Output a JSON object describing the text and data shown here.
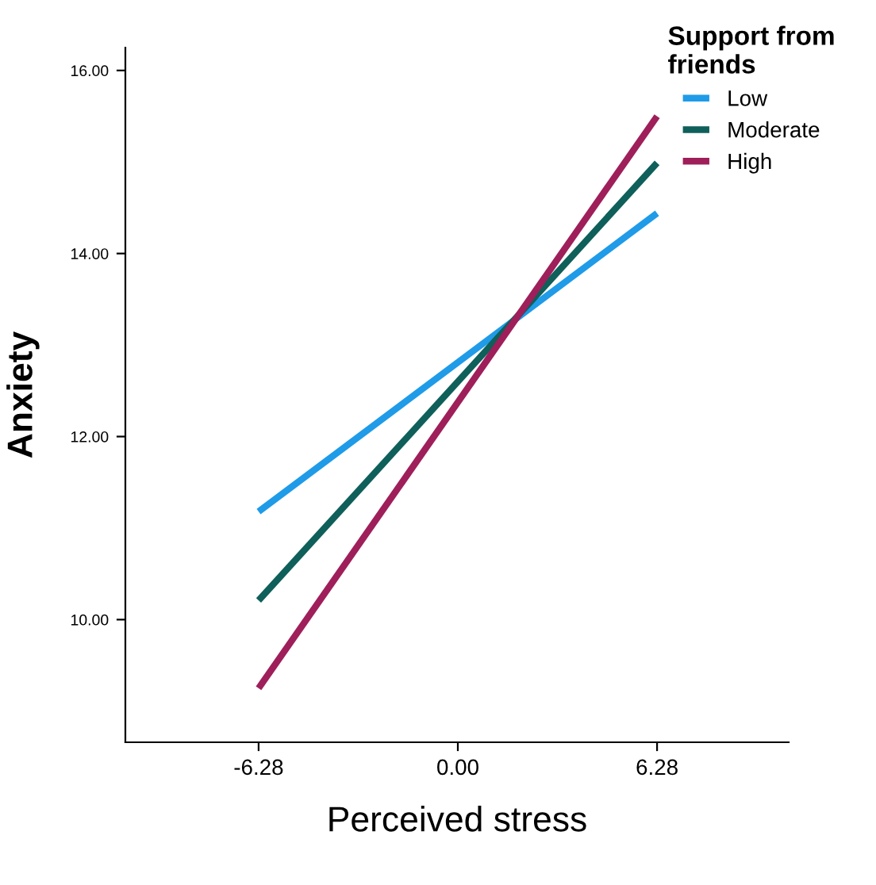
{
  "chart_data": {
    "type": "line",
    "xlabel": "Perceived stress",
    "ylabel": "Anxiety",
    "legend_title": "Support from\nfriends",
    "legend": "top right",
    "grid": false,
    "marker": "none",
    "line_style": "solid",
    "x": [
      -6.28,
      6.28
    ],
    "xlim": [
      -10.48,
      10.43
    ],
    "ylim": [
      8.66,
      16.25
    ],
    "xticks": [
      {
        "value": -6.28,
        "label": "-6.28"
      },
      {
        "value": 0,
        "label": "0.00"
      },
      {
        "value": 6.28,
        "label": "6.28"
      }
    ],
    "yticks": [
      {
        "value": 10,
        "label": "10.00"
      },
      {
        "value": 12,
        "label": "12.00"
      },
      {
        "value": 14,
        "label": "14.00"
      },
      {
        "value": 16,
        "label": "16.00"
      }
    ],
    "series": [
      {
        "name": "Low",
        "color": "#1f9be8",
        "values": [
          11.18,
          14.44
        ]
      },
      {
        "name": "Moderate",
        "color": "#0f5f5a",
        "values": [
          10.21,
          14.99
        ]
      },
      {
        "name": "High",
        "color": "#9e1f5a",
        "values": [
          9.25,
          15.5
        ]
      }
    ]
  }
}
